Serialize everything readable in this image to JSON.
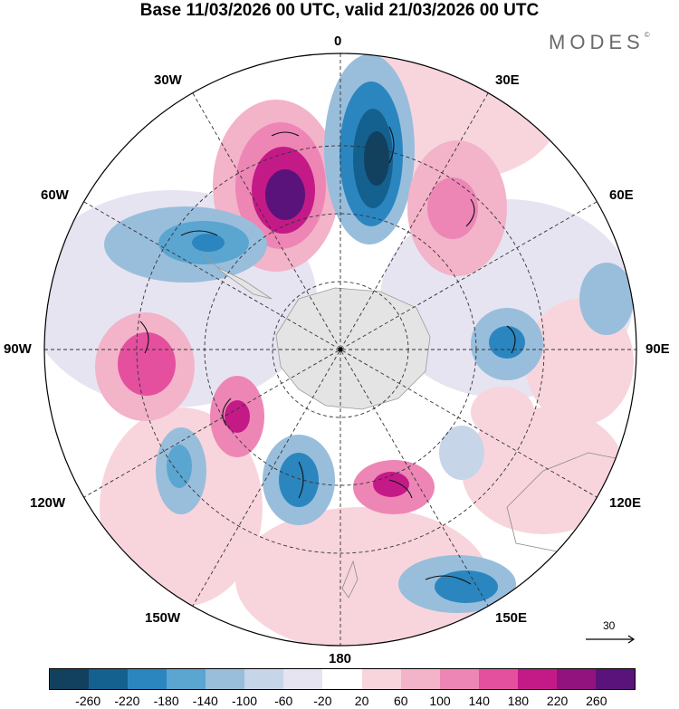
{
  "header": {
    "title": "Base 11/03/2026 00 UTC, valid 21/03/2026 00 UTC",
    "brand": "MODES",
    "brand_mark": "©"
  },
  "map": {
    "projection": "south-polar-stereographic",
    "longitude_labels": {
      "top": "0",
      "bottom": "180",
      "left": "90W",
      "right": "90E",
      "nw30": "30W",
      "nw60": "60W",
      "sw120": "120W",
      "sw150": "150W",
      "ne30": "30E",
      "ne60": "60E",
      "se120": "120E",
      "se150": "150E"
    }
  },
  "legend": {
    "vector_reference_value": "30",
    "colorbar": {
      "colors": [
        "#12405f",
        "#14608f",
        "#2b86c0",
        "#5ba5d1",
        "#98bedc",
        "#c7d5e9",
        "#e6e4f1",
        "#ffffff",
        "#f8d5dc",
        "#f3b3c9",
        "#ed86b5",
        "#e4509e",
        "#c41a88",
        "#92127e",
        "#5a137a"
      ],
      "ticks": [
        "-260",
        "-220",
        "-180",
        "-140",
        "-100",
        "-60",
        "-20",
        "20",
        "60",
        "100",
        "140",
        "180",
        "220",
        "260"
      ]
    }
  }
}
